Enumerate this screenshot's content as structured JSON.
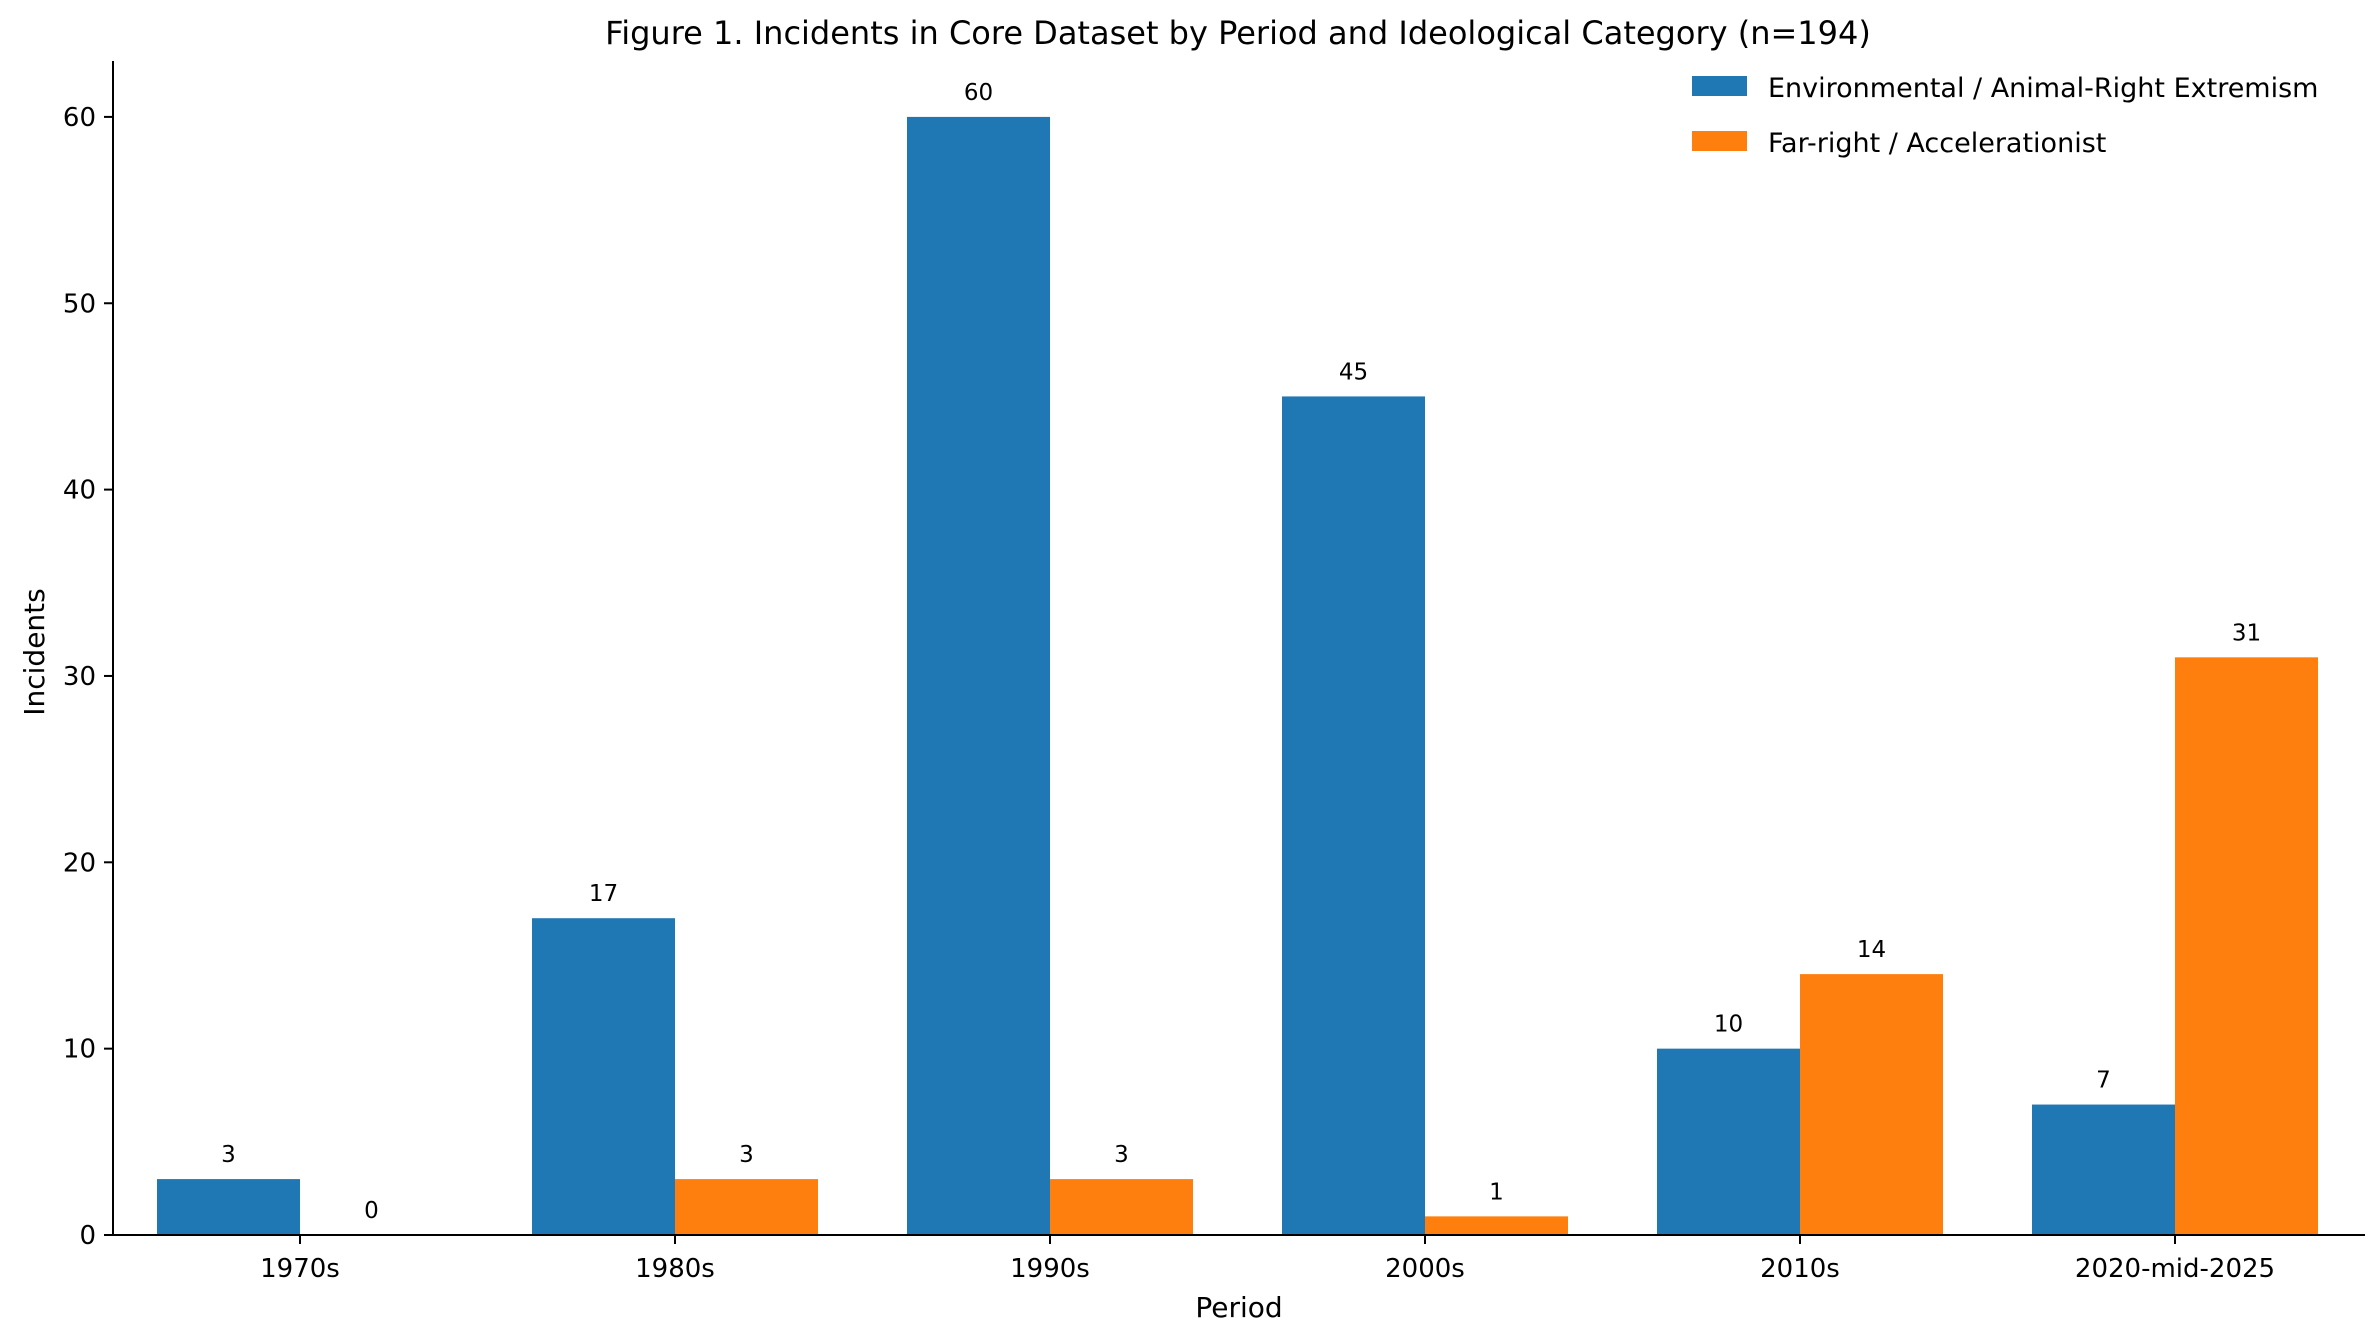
{
  "chart_data": {
    "type": "bar",
    "title": "Figure 1. Incidents in Core Dataset by Period and Ideological Category (n=194)",
    "xlabel": "Period",
    "ylabel": "Incidents",
    "categories": [
      "1970s",
      "1980s",
      "1990s",
      "2000s",
      "2010s",
      "2020-mid-2025"
    ],
    "series": [
      {
        "name": "Environmental / Animal-Right Extremism",
        "color": "#1f77b4",
        "values": [
          3,
          17,
          60,
          45,
          10,
          7
        ]
      },
      {
        "name": "Far-right / Accelerationist",
        "color": "#ff7f0e",
        "values": [
          0,
          3,
          3,
          1,
          14,
          31
        ]
      }
    ],
    "ylim": [
      0,
      63
    ],
    "yticks": [
      0,
      10,
      20,
      30,
      40,
      50,
      60
    ],
    "grid": false,
    "legend_position": "top-right"
  }
}
